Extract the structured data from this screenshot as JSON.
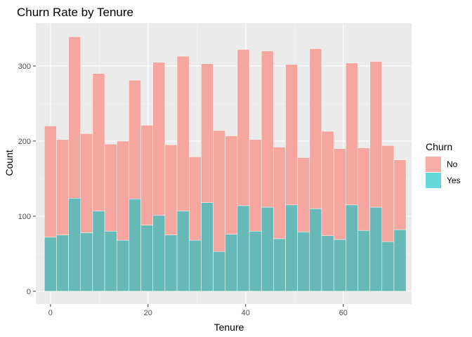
{
  "chart_data": {
    "type": "bar",
    "stacked": true,
    "title": "Churn Rate by Tenure",
    "xlabel": "Tenure",
    "ylabel": "Count",
    "xlim": [
      -3,
      74
    ],
    "ylim": [
      -17,
      357
    ],
    "xticks": [
      0,
      20,
      40,
      60
    ],
    "yticks": [
      0,
      100,
      200,
      300
    ],
    "grid": true,
    "legend": {
      "title": "Churn",
      "placement": "right"
    },
    "bin_width": 2.47,
    "x": [
      0,
      2.47,
      4.94,
      7.41,
      9.88,
      12.35,
      14.82,
      17.29,
      19.76,
      22.23,
      24.7,
      27.17,
      29.64,
      32.11,
      34.58,
      37.05,
      39.52,
      41.99,
      44.46,
      46.93,
      49.4,
      51.87,
      54.34,
      56.81,
      59.28,
      61.75,
      64.22,
      66.69,
      69.16,
      71.63
    ],
    "series": [
      {
        "name": "Yes",
        "color": "#66B9B7",
        "values": [
          72,
          75,
          124,
          78,
          107,
          80,
          68,
          123,
          88,
          101,
          75,
          107,
          68,
          118,
          53,
          76,
          114,
          80,
          112,
          70,
          115,
          79,
          110,
          74,
          69,
          115,
          81,
          112,
          66,
          82
        ]
      },
      {
        "name": "No",
        "color": "#F4A69F",
        "values": [
          148,
          127,
          215,
          132,
          183,
          116,
          132,
          158,
          133,
          204,
          120,
          206,
          111,
          185,
          161,
          131,
          208,
          122,
          208,
          122,
          187,
          99,
          213,
          139,
          121,
          189,
          110,
          194,
          128,
          93
        ]
      }
    ],
    "legend_swatches": {
      "No": "#F8766D",
      "Yes": "#00BFC4"
    }
  }
}
